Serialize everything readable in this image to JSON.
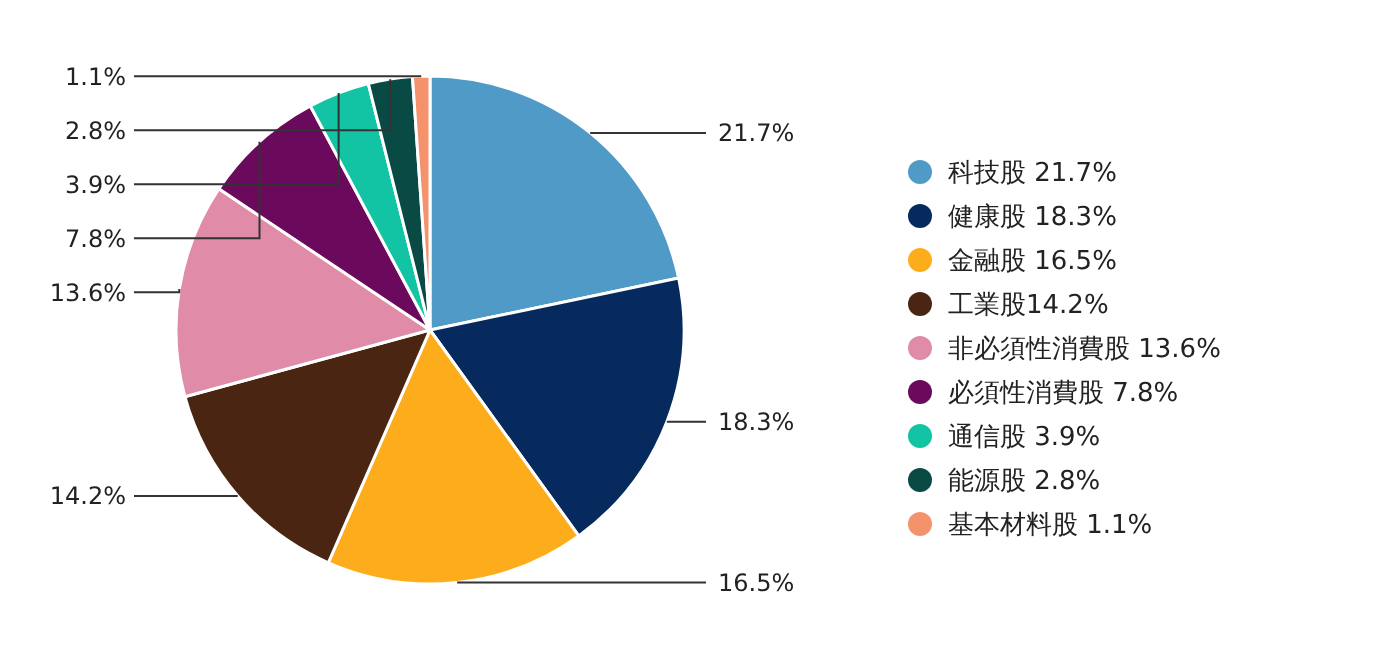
{
  "chart_data": {
    "type": "pie",
    "categories": [
      "科技股 21.7%",
      "健康股 18.3%",
      "金融股 16.5%",
      "工業股14.2%",
      "非必須性消費股 13.6%",
      "必須性消費股 7.8%",
      "通信股 3.9%",
      "能源股 2.8%",
      "基本材料股 1.1%"
    ],
    "values": [
      21.7,
      18.3,
      16.5,
      14.2,
      13.6,
      7.8,
      3.9,
      2.8,
      1.1
    ],
    "value_labels": [
      "21.7%",
      "18.3%",
      "16.5%",
      "14.2%",
      "13.6%",
      "7.8%",
      "3.9%",
      "2.8%",
      "1.1%"
    ],
    "colors": [
      "#4f9ac6",
      "#062a5e",
      "#fdad1c",
      "#4a2512",
      "#e08ba8",
      "#6b0a5c",
      "#12c4a3",
      "#0a4a45",
      "#f4926b"
    ],
    "legend": "right"
  }
}
